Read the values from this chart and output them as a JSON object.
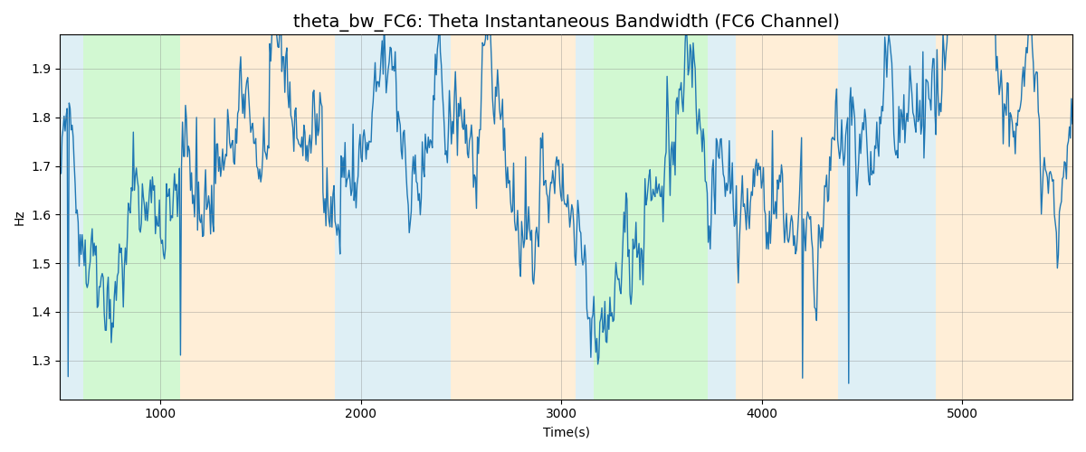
{
  "title": "theta_bw_FC6: Theta Instantaneous Bandwidth (FC6 Channel)",
  "xlabel": "Time(s)",
  "ylabel": "Hz",
  "xlim": [
    500,
    5550
  ],
  "ylim": [
    1.22,
    1.97
  ],
  "background_bands": [
    {
      "xmin": 500,
      "xmax": 615,
      "color": "#add8e6",
      "alpha": 0.4
    },
    {
      "xmin": 615,
      "xmax": 1100,
      "color": "#90ee90",
      "alpha": 0.4
    },
    {
      "xmin": 1100,
      "xmax": 1870,
      "color": "#ffd59b",
      "alpha": 0.4
    },
    {
      "xmin": 1870,
      "xmax": 2450,
      "color": "#add8e6",
      "alpha": 0.4
    },
    {
      "xmin": 2450,
      "xmax": 3070,
      "color": "#ffd59b",
      "alpha": 0.4
    },
    {
      "xmin": 3070,
      "xmax": 3160,
      "color": "#add8e6",
      "alpha": 0.4
    },
    {
      "xmin": 3160,
      "xmax": 3730,
      "color": "#90ee90",
      "alpha": 0.4
    },
    {
      "xmin": 3730,
      "xmax": 3870,
      "color": "#add8e6",
      "alpha": 0.4
    },
    {
      "xmin": 3870,
      "xmax": 4380,
      "color": "#ffd59b",
      "alpha": 0.4
    },
    {
      "xmin": 4380,
      "xmax": 4870,
      "color": "#add8e6",
      "alpha": 0.4
    },
    {
      "xmin": 4870,
      "xmax": 5550,
      "color": "#ffd59b",
      "alpha": 0.4
    }
  ],
  "line_color": "#1f77b4",
  "line_width": 1.0,
  "grid": true,
  "seed": 42,
  "mean": 1.685,
  "std_fast": 0.025,
  "std_slow": 0.04,
  "n_points": 1010,
  "x_start": 500,
  "x_end": 5550,
  "title_fontsize": 14
}
